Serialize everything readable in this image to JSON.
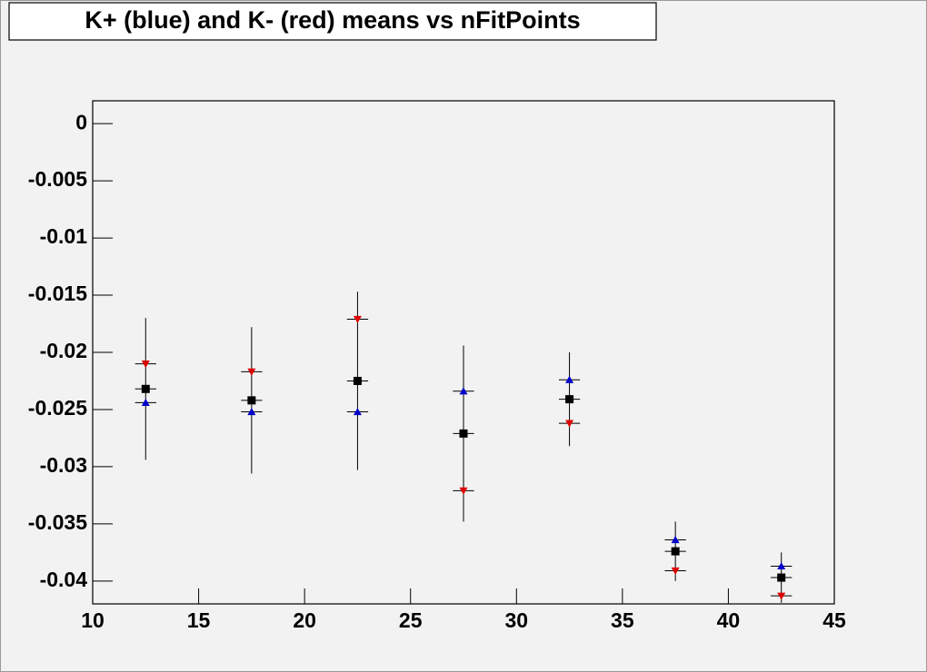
{
  "chart_data": {
    "type": "errorbar",
    "title": "K+ (blue) and K- (red) means vs nFitPoints",
    "x": [
      12.5,
      17.5,
      22.5,
      27.5,
      32.5,
      37.5,
      42.5
    ],
    "xerr": 0.5,
    "series": [
      {
        "color": "#000000",
        "marker": "square",
        "values": [
          -0.0232,
          -0.0242,
          -0.0225,
          -0.0271,
          -0.0241,
          -0.0374,
          -0.0397
        ],
        "errors": [
          0.0062,
          0.0064,
          0.0078,
          0.0077,
          0.0041,
          0.0026,
          0.0022
        ]
      },
      {
        "color": "#0000cc",
        "marker": "triangle-up",
        "values": [
          -0.0244,
          -0.0252,
          -0.0252,
          -0.0234,
          -0.0224,
          -0.0364,
          -0.0387
        ]
      },
      {
        "color": "#dd0000",
        "marker": "triangle-down",
        "values": [
          -0.021,
          -0.0217,
          -0.0171,
          -0.0321,
          -0.0262,
          -0.0391,
          -0.0413
        ]
      }
    ],
    "xlim": [
      10,
      45
    ],
    "xticks": [
      10,
      15,
      20,
      25,
      30,
      35,
      40,
      45
    ],
    "ylim": [
      -0.042,
      0.002
    ],
    "yticks": [
      0,
      -0.005,
      -0.01,
      -0.015,
      -0.02,
      -0.025,
      -0.03,
      -0.035,
      -0.04
    ]
  }
}
